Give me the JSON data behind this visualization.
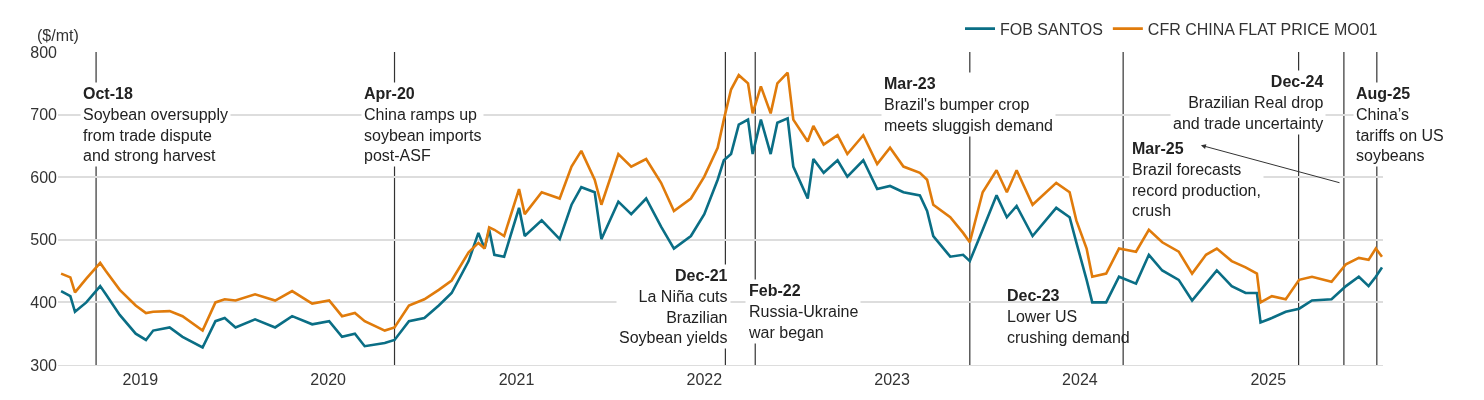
{
  "chart_data": {
    "type": "line",
    "ylabel": "($/mt)",
    "x": [
      "2018-07-31",
      "2018-08-18",
      "2018-08-27",
      "2018-09-18",
      "2018-10-15",
      "2018-10-26",
      "2018-11-22",
      "2018-12-23",
      "2019-01-12",
      "2019-01-26",
      "2019-02-27",
      "2019-03-24",
      "2019-05-02",
      "2019-05-27",
      "2019-06-14",
      "2019-07-05",
      "2019-08-12",
      "2019-09-20",
      "2019-10-23",
      "2019-12-01",
      "2020-01-03",
      "2020-01-28",
      "2020-02-22",
      "2020-03-12",
      "2020-04-20",
      "2020-05-09",
      "2020-06-06",
      "2020-07-06",
      "2020-08-03",
      "2020-08-28",
      "2020-09-30",
      "2020-10-19",
      "2020-10-31",
      "2020-11-09",
      "2020-11-19",
      "2020-12-08",
      "2021-01-06",
      "2021-01-17",
      "2021-02-19",
      "2021-03-26",
      "2021-04-18",
      "2021-05-07",
      "2021-06-02",
      "2021-06-15",
      "2021-07-18",
      "2021-08-12",
      "2021-09-10",
      "2021-10-09",
      "2021-11-03",
      "2021-12-06",
      "2022-01-01",
      "2022-01-27",
      "2022-02-08",
      "2022-02-22",
      "2022-03-09",
      "2022-03-27",
      "2022-04-05",
      "2022-04-21",
      "2022-05-10",
      "2022-05-23",
      "2022-06-12",
      "2022-06-23",
      "2022-07-21",
      "2022-08-01",
      "2022-08-21",
      "2022-09-17",
      "2022-10-06",
      "2022-11-06",
      "2022-12-03",
      "2022-12-28",
      "2023-01-23",
      "2023-02-24",
      "2023-03-10",
      "2023-03-22",
      "2023-04-24",
      "2023-05-19",
      "2023-06-01",
      "2023-06-26",
      "2023-07-23",
      "2023-08-12",
      "2023-08-31",
      "2023-10-01",
      "2023-11-16",
      "2023-12-12",
      "2023-12-25",
      "2024-01-14",
      "2024-01-25",
      "2024-02-21",
      "2024-03-17",
      "2024-04-19",
      "2024-05-14",
      "2024-06-09",
      "2024-07-11",
      "2024-08-06",
      "2024-09-02",
      "2024-09-23",
      "2024-10-22",
      "2024-11-18",
      "2024-12-10",
      "2024-12-17",
      "2025-01-08",
      "2025-02-04",
      "2025-03-02",
      "2025-03-27",
      "2025-05-04",
      "2025-06-01",
      "2025-06-26",
      "2025-07-15",
      "2025-07-29",
      "2025-08-10"
    ],
    "series": [
      {
        "name": "FOB SANTOS",
        "color": "#0a6e85",
        "values": [
          418,
          410,
          385,
          400,
          426,
          413,
          380,
          350,
          340,
          355,
          360,
          345,
          328,
          370,
          375,
          360,
          373,
          360,
          378,
          365,
          370,
          345,
          350,
          330,
          335,
          340,
          370,
          375,
          395,
          415,
          466,
          511,
          486,
          516,
          476,
          473,
          551,
          506,
          531,
          501,
          556,
          584,
          576,
          501,
          561,
          541,
          566,
          521,
          486,
          506,
          541,
          596,
          627,
          637,
          684,
          692,
          637,
          692,
          637,
          687,
          694,
          617,
          566,
          629,
          607,
          627,
          601,
          627,
          581,
          586,
          576,
          571,
          546,
          506,
          473,
          476,
          466,
          516,
          571,
          536,
          554,
          506,
          551,
          536,
          496,
          436,
          400,
          400,
          441,
          430,
          476,
          451,
          436,
          403,
          430,
          451,
          426,
          415,
          415,
          368,
          375,
          385,
          390,
          403,
          405,
          426,
          441,
          426,
          441,
          456
        ]
      },
      {
        "name": "CFR CHINA FLAT PRICE MO01",
        "color": "#e07b0b",
        "values": [
          446,
          440,
          416,
          438,
          463,
          450,
          420,
          395,
          383,
          385,
          386,
          378,
          355,
          400,
          405,
          403,
          413,
          403,
          418,
          398,
          403,
          378,
          383,
          370,
          355,
          360,
          395,
          405,
          420,
          435,
          480,
          495,
          486,
          520,
          516,
          506,
          581,
          541,
          576,
          566,
          617,
          642,
          596,
          556,
          637,
          617,
          629,
          591,
          546,
          566,
          601,
          647,
          692,
          740,
          763,
          750,
          702,
          745,
          702,
          750,
          767,
          692,
          657,
          682,
          652,
          667,
          637,
          667,
          621,
          647,
          617,
          607,
          596,
          556,
          536,
          511,
          496,
          576,
          611,
          576,
          611,
          556,
          591,
          576,
          531,
          486,
          441,
          446,
          486,
          481,
          516,
          496,
          481,
          446,
          476,
          486,
          466,
          456,
          446,
          400,
          410,
          405,
          436,
          441,
          433,
          461,
          471,
          468,
          486,
          473
        ]
      }
    ],
    "xlim": [
      "2018-07-25",
      "2025-08-12"
    ],
    "xticks": [
      {
        "value": "2019-01-01",
        "label": "2019"
      },
      {
        "value": "2020-01-01",
        "label": "2020"
      },
      {
        "value": "2021-01-01",
        "label": "2021"
      },
      {
        "value": "2022-01-01",
        "label": "2022"
      },
      {
        "value": "2023-01-01",
        "label": "2023"
      },
      {
        "value": "2024-01-01",
        "label": "2024"
      },
      {
        "value": "2025-01-01",
        "label": "2025"
      }
    ],
    "ylim": [
      300,
      800
    ],
    "yticks": [
      300,
      400,
      500,
      600,
      700,
      800
    ],
    "grid": "y",
    "legend": "top right",
    "marker": "none",
    "line_style": "solid",
    "ref_lines": [
      {
        "axis": "x",
        "value": "2018-10-07",
        "color": "#333333",
        "label": "Oct-18\nSoybean oversupply\nfrom trade dispute\nand strong harvest"
      },
      {
        "axis": "x",
        "value": "2020-05-09",
        "color": "#333333",
        "label": "Apr-20\nChina ramps up\nsoybean imports\npost-ASF"
      },
      {
        "axis": "x",
        "value": "2022-02-11",
        "color": "#333333",
        "label": "Dec-21\nLa Niña cuts\nBrazilian\nSoybean yields"
      },
      {
        "axis": "x",
        "value": "2022-04-10",
        "color": "#333333",
        "label": "Feb-22\nRussia-Ukraine\nwar began"
      },
      {
        "axis": "x",
        "value": "2023-06-01",
        "color": "#333333",
        "label": "Mar-23\nBrazil's bumper crop\nmeets sluggish demand"
      },
      {
        "axis": "x",
        "value": "2024-03-25",
        "color": "#333333",
        "label": "Dec-23\nLower US\ncrushing demand"
      },
      {
        "axis": "x",
        "value": "2025-03-01",
        "color": "#333333",
        "label": "Dec-24\nBrazilian Real drop\nand trade uncertainty"
      },
      {
        "axis": "x",
        "value": "2025-05-28",
        "color": "#333333",
        "label": "Mar-25\nBrazil forecasts\nrecord production,\ncrush"
      },
      {
        "axis": "x",
        "value": "2025-07-31",
        "color": "#333333",
        "label": "Aug-25\nChina’s\ntariffs on US\nsoybeans"
      }
    ]
  }
}
